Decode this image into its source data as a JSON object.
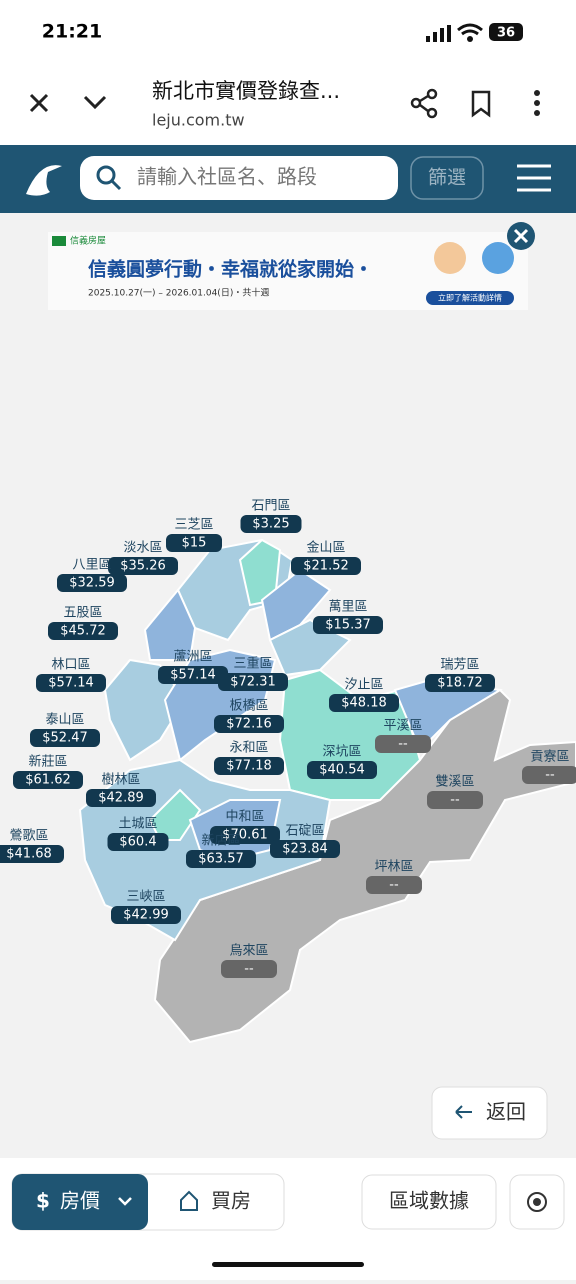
{
  "status_bar": {
    "time": "21:21",
    "battery": "36"
  },
  "browser": {
    "title": "新北市實價登錄查...",
    "url": "leju.com.tw"
  },
  "search": {
    "placeholder": "請輸入社區名、路段",
    "filter": "篩選"
  },
  "banner": {
    "brand": "信義房屋",
    "headline": "信義圓夢行動・幸福就從家開始・",
    "dates": "2025.10.27(一) – 2026.01.04(日)・共十週",
    "cta": "立即了解活動詳情"
  },
  "districts": [
    {
      "name": "石門區",
      "price": "$3.25"
    },
    {
      "name": "三芝區",
      "price": "$15"
    },
    {
      "name": "淡水區",
      "price": "$35.26"
    },
    {
      "name": "金山區",
      "price": "$21.52"
    },
    {
      "name": "八里區",
      "price": "$32.59"
    },
    {
      "name": "萬里區",
      "price": "$15.37"
    },
    {
      "name": "五股區",
      "price": "$45.72"
    },
    {
      "name": "蘆洲區",
      "price": "$57.14"
    },
    {
      "name": "三重區",
      "price": "$72.31"
    },
    {
      "name": "林口區",
      "price": "$57.14"
    },
    {
      "name": "汐止區",
      "price": "$48.18"
    },
    {
      "name": "瑞芳區",
      "price": "$18.72"
    },
    {
      "name": "板橋區",
      "price": "$72.16"
    },
    {
      "name": "泰山區",
      "price": "$52.47"
    },
    {
      "name": "平溪區",
      "price": "--"
    },
    {
      "name": "永和區",
      "price": "$77.18"
    },
    {
      "name": "深坑區",
      "price": "$40.54"
    },
    {
      "name": "新莊區",
      "price": "$61.62"
    },
    {
      "name": "樹林區",
      "price": "$42.89"
    },
    {
      "name": "雙溪區",
      "price": "--"
    },
    {
      "name": "貢寮區",
      "price": "--"
    },
    {
      "name": "中和區",
      "price": "$70.61"
    },
    {
      "name": "鶯歌區",
      "price": "$41.68"
    },
    {
      "name": "土城區",
      "price": "$60.4"
    },
    {
      "name": "新店區",
      "price": "$63.57"
    },
    {
      "name": "石碇區",
      "price": "$23.84"
    },
    {
      "name": "坪林區",
      "price": "--"
    },
    {
      "name": "三峽區",
      "price": "$42.99"
    },
    {
      "name": "烏來區",
      "price": "--"
    }
  ],
  "buttons": {
    "back": "返回",
    "price": "房價",
    "buy": "買房",
    "area_data": "區域數據"
  }
}
